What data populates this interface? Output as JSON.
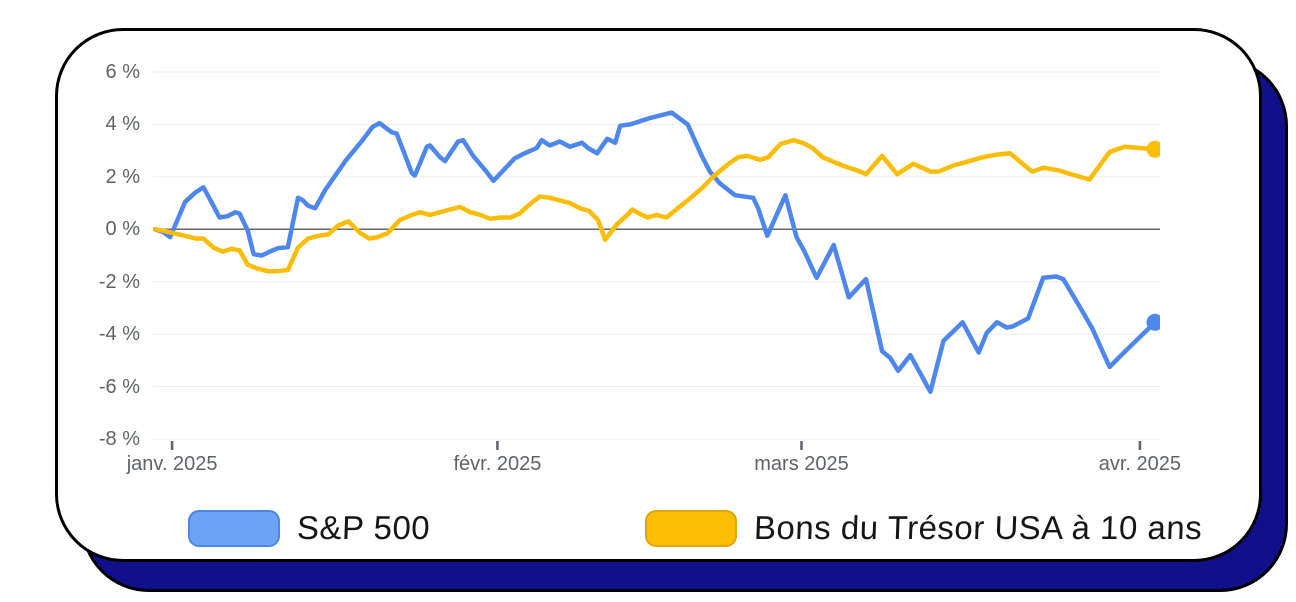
{
  "chart_data": {
    "type": "line",
    "title": "",
    "legend_position": "bottom",
    "x_axis": {
      "ticks": [
        {
          "label": "janv. 2025",
          "pct": 1.9
        },
        {
          "label": "févr. 2025",
          "pct": 34.2
        },
        {
          "label": "mars 2025",
          "pct": 64.4
        },
        {
          "label": "avr. 2025",
          "pct": 98.0
        }
      ]
    },
    "y_axis": {
      "unit": "%",
      "zero_line": true,
      "ticks": [
        {
          "label": "6 %",
          "value": 6
        },
        {
          "label": "4 %",
          "value": 4
        },
        {
          "label": "2 %",
          "value": 2
        },
        {
          "label": "0 %",
          "value": 0
        },
        {
          "label": "-2 %",
          "value": -2
        },
        {
          "label": "-4 %",
          "value": -4
        },
        {
          "label": "-6 %",
          "value": -6
        },
        {
          "label": "-8 %",
          "value": -8
        }
      ]
    },
    "series": [
      {
        "name": "S&P 500",
        "color": "#4d87ee",
        "swatch_fill": "#6da3f5",
        "swatch_border": "#4b87e8",
        "end_dot": true,
        "points": [
          [
            0.2,
            0
          ],
          [
            1,
            -0.1
          ],
          [
            1.7,
            -0.3
          ],
          [
            3.2,
            1.05
          ],
          [
            4.2,
            1.4
          ],
          [
            5,
            1.6
          ],
          [
            6,
            0.9
          ],
          [
            6.6,
            0.45
          ],
          [
            7.4,
            0.5
          ],
          [
            8.2,
            0.65
          ],
          [
            8.6,
            0.6
          ],
          [
            9.4,
            -0.05
          ],
          [
            10,
            -0.95
          ],
          [
            10.8,
            -1
          ],
          [
            11.6,
            -0.85
          ],
          [
            12.4,
            -0.72
          ],
          [
            13.4,
            -0.68
          ],
          [
            14.4,
            1.2
          ],
          [
            14.9,
            1.1
          ],
          [
            15.4,
            0.9
          ],
          [
            16.1,
            0.8
          ],
          [
            17.1,
            1.5
          ],
          [
            18.1,
            2.05
          ],
          [
            19.1,
            2.6
          ],
          [
            20.8,
            3.4
          ],
          [
            21.8,
            3.9
          ],
          [
            22.5,
            4.05
          ],
          [
            23.7,
            3.7
          ],
          [
            24.2,
            3.65
          ],
          [
            25.7,
            2.15
          ],
          [
            26,
            2.05
          ],
          [
            27.2,
            3.15
          ],
          [
            27.5,
            3.2
          ],
          [
            28.5,
            2.75
          ],
          [
            29,
            2.6
          ],
          [
            30.3,
            3.35
          ],
          [
            30.8,
            3.4
          ],
          [
            31.8,
            2.8
          ],
          [
            33,
            2.25
          ],
          [
            33.8,
            1.85
          ],
          [
            34.8,
            2.25
          ],
          [
            35.9,
            2.7
          ],
          [
            36.9,
            2.9
          ],
          [
            38.1,
            3.1
          ],
          [
            38.6,
            3.4
          ],
          [
            39.4,
            3.2
          ],
          [
            40.4,
            3.35
          ],
          [
            41.4,
            3.15
          ],
          [
            42.6,
            3.3
          ],
          [
            43.2,
            3.1
          ],
          [
            44.1,
            2.9
          ],
          [
            45.1,
            3.45
          ],
          [
            45.9,
            3.3
          ],
          [
            46.4,
            3.95
          ],
          [
            47.4,
            4
          ],
          [
            49.4,
            4.25
          ],
          [
            51.5,
            4.45
          ],
          [
            53.1,
            4
          ],
          [
            54.5,
            2.8
          ],
          [
            55.3,
            2.2
          ],
          [
            56.3,
            1.75
          ],
          [
            57.8,
            1.3
          ],
          [
            59.6,
            1.2
          ],
          [
            60.1,
            0.8
          ],
          [
            61,
            -0.25
          ],
          [
            62.8,
            1.3
          ],
          [
            63.9,
            -0.3
          ],
          [
            64.7,
            -0.85
          ],
          [
            65.9,
            -1.85
          ],
          [
            67.6,
            -0.6
          ],
          [
            69.1,
            -2.6
          ],
          [
            70.8,
            -1.9
          ],
          [
            72.4,
            -4.65
          ],
          [
            73.2,
            -4.9
          ],
          [
            74,
            -5.4
          ],
          [
            75.2,
            -4.8
          ],
          [
            77.2,
            -6.2
          ],
          [
            78.5,
            -4.25
          ],
          [
            79.2,
            -4
          ],
          [
            80.4,
            -3.55
          ],
          [
            82,
            -4.7
          ],
          [
            82.8,
            -3.95
          ],
          [
            83.8,
            -3.55
          ],
          [
            84.8,
            -3.75
          ],
          [
            85.4,
            -3.7
          ],
          [
            86.9,
            -3.4
          ],
          [
            88.4,
            -1.85
          ],
          [
            89.7,
            -1.8
          ],
          [
            90.4,
            -1.9
          ],
          [
            92.1,
            -3
          ],
          [
            93.3,
            -3.8
          ],
          [
            95,
            -5.25
          ],
          [
            96.3,
            -4.75
          ],
          [
            99.5,
            -3.55
          ]
        ]
      },
      {
        "name": "Bons du Trésor USA à 10 ans",
        "color": "#fbbc04",
        "swatch_fill": "#fbbc04",
        "swatch_border": "#e2a600",
        "end_dot": true,
        "points": [
          [
            0.2,
            0
          ],
          [
            1,
            -0.05
          ],
          [
            2,
            -0.15
          ],
          [
            3.2,
            -0.25
          ],
          [
            4.2,
            -0.35
          ],
          [
            5,
            -0.35
          ],
          [
            6,
            -0.7
          ],
          [
            6.9,
            -0.85
          ],
          [
            7.8,
            -0.75
          ],
          [
            8.6,
            -0.8
          ],
          [
            9.4,
            -1.35
          ],
          [
            10.4,
            -1.5
          ],
          [
            11.4,
            -1.6
          ],
          [
            12.4,
            -1.6
          ],
          [
            13.4,
            -1.55
          ],
          [
            14.4,
            -0.7
          ],
          [
            15.4,
            -0.35
          ],
          [
            16.4,
            -0.25
          ],
          [
            17.4,
            -0.2
          ],
          [
            18.4,
            0.15
          ],
          [
            19.4,
            0.3
          ],
          [
            20.6,
            -0.15
          ],
          [
            21.5,
            -0.35
          ],
          [
            22.3,
            -0.3
          ],
          [
            23.3,
            -0.15
          ],
          [
            24.5,
            0.35
          ],
          [
            25.7,
            0.55
          ],
          [
            26.5,
            0.65
          ],
          [
            27.5,
            0.55
          ],
          [
            28.5,
            0.65
          ],
          [
            29.5,
            0.75
          ],
          [
            30.5,
            0.85
          ],
          [
            31.5,
            0.65
          ],
          [
            32.5,
            0.55
          ],
          [
            33.5,
            0.4
          ],
          [
            34.5,
            0.45
          ],
          [
            35.5,
            0.45
          ],
          [
            36.4,
            0.6
          ],
          [
            37.4,
            0.95
          ],
          [
            38.4,
            1.25
          ],
          [
            39.4,
            1.2
          ],
          [
            40.4,
            1.1
          ],
          [
            41.4,
            1
          ],
          [
            42.4,
            0.8
          ],
          [
            43.3,
            0.7
          ],
          [
            44.2,
            0.35
          ],
          [
            44.9,
            -0.4
          ],
          [
            46.1,
            0.2
          ],
          [
            47.1,
            0.55
          ],
          [
            47.6,
            0.75
          ],
          [
            48.3,
            0.6
          ],
          [
            49.1,
            0.45
          ],
          [
            50,
            0.55
          ],
          [
            51,
            0.45
          ],
          [
            52.1,
            0.8
          ],
          [
            53.1,
            1.1
          ],
          [
            54.6,
            1.6
          ],
          [
            55.6,
            2
          ],
          [
            57,
            2.45
          ],
          [
            58.1,
            2.75
          ],
          [
            59,
            2.8
          ],
          [
            60.3,
            2.65
          ],
          [
            61.1,
            2.75
          ],
          [
            62.3,
            3.25
          ],
          [
            63.6,
            3.4
          ],
          [
            64.5,
            3.3
          ],
          [
            65.5,
            3.1
          ],
          [
            66.5,
            2.75
          ],
          [
            67.7,
            2.55
          ],
          [
            68.7,
            2.4
          ],
          [
            69.9,
            2.25
          ],
          [
            70.8,
            2.1
          ],
          [
            72.4,
            2.8
          ],
          [
            73.9,
            2.1
          ],
          [
            75.5,
            2.5
          ],
          [
            77.2,
            2.2
          ],
          [
            78,
            2.2
          ],
          [
            79.6,
            2.45
          ],
          [
            80.6,
            2.55
          ],
          [
            82.4,
            2.75
          ],
          [
            83.8,
            2.85
          ],
          [
            85.1,
            2.9
          ],
          [
            87.3,
            2.2
          ],
          [
            88.4,
            2.35
          ],
          [
            89.9,
            2.25
          ],
          [
            91.6,
            2.05
          ],
          [
            93,
            1.9
          ],
          [
            95,
            2.95
          ],
          [
            96.5,
            3.15
          ],
          [
            98,
            3.1
          ],
          [
            99.5,
            3.05
          ]
        ]
      }
    ]
  },
  "legend": {
    "items": [
      {
        "label": "S&P 500"
      },
      {
        "label": "Bons du Trésor USA à 10 ans"
      }
    ]
  },
  "colors": {
    "card_shadow": "#10108a",
    "card_border": "#000000",
    "axis_text": "#5f6368",
    "grid": "#ececec",
    "zero_line": "#666666",
    "sp500": "#4d87ee",
    "treasury": "#fbbc04"
  }
}
